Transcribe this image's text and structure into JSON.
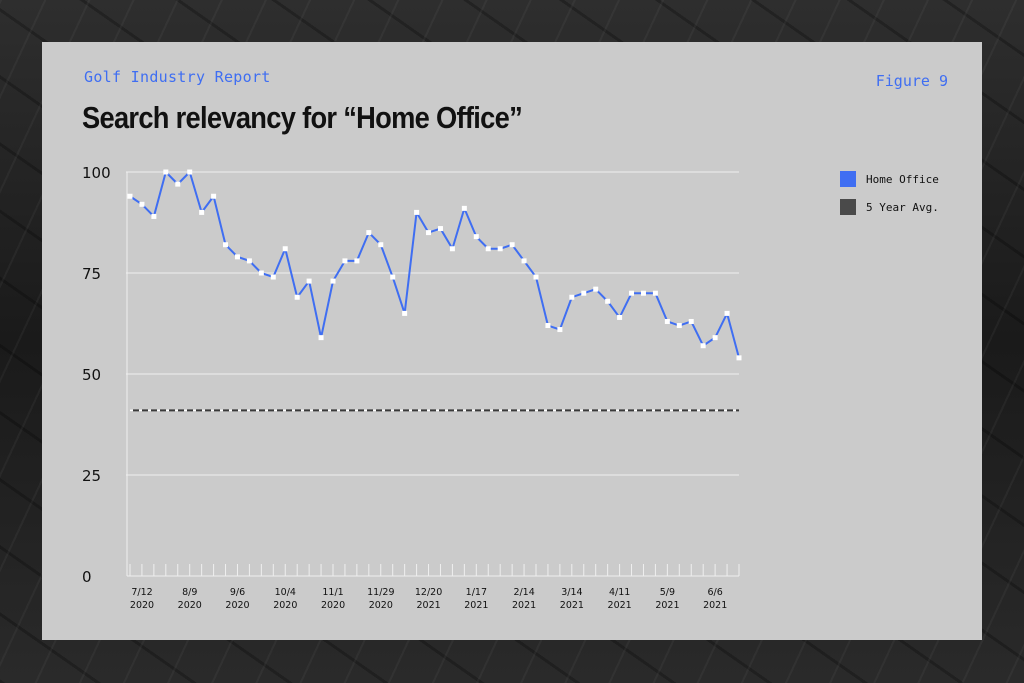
{
  "header": {
    "report": "Golf Industry Report",
    "figure": "Figure 9",
    "title": "Search relevancy for “Home Office”"
  },
  "legend": [
    {
      "label": "Home Office",
      "color": "#3f6ef2"
    },
    {
      "label": "5 Year Avg.",
      "color": "#4a4a4a"
    }
  ],
  "chart_data": {
    "type": "line",
    "title": "Search relevancy for “Home Office”",
    "xlabel": "",
    "ylabel": "",
    "ylim": [
      0,
      100
    ],
    "yticks": [
      0,
      25,
      50,
      75,
      100
    ],
    "grid": true,
    "legend_position": "top-right",
    "x_tick_labels": [
      {
        "line1": "7/12",
        "line2": "2020",
        "index": 0
      },
      {
        "line1": "8/9",
        "line2": "2020",
        "index": 4
      },
      {
        "line1": "9/6",
        "line2": "2020",
        "index": 8
      },
      {
        "line1": "10/4",
        "line2": "2020",
        "index": 12
      },
      {
        "line1": "11/1",
        "line2": "2020",
        "index": 16
      },
      {
        "line1": "11/29",
        "line2": "2020",
        "index": 20
      },
      {
        "line1": "12/20",
        "line2": "2021",
        "index": 24
      },
      {
        "line1": "1/17",
        "line2": "2021",
        "index": 28
      },
      {
        "line1": "2/14",
        "line2": "2021",
        "index": 32
      },
      {
        "line1": "3/14",
        "line2": "2021",
        "index": 36
      },
      {
        "line1": "4/11",
        "line2": "2021",
        "index": 40
      },
      {
        "line1": "5/9",
        "line2": "2021",
        "index": 44
      },
      {
        "line1": "6/6",
        "line2": "2021",
        "index": 48
      }
    ],
    "series": [
      {
        "name": "Home Office",
        "color": "#3f6ef2",
        "values": [
          94,
          92,
          89,
          100,
          97,
          100,
          90,
          94,
          82,
          79,
          78,
          75,
          74,
          81,
          69,
          73,
          59,
          73,
          78,
          78,
          85,
          82,
          74,
          65,
          90,
          85,
          86,
          81,
          91,
          84,
          81,
          81,
          82,
          78,
          74,
          62,
          61,
          69,
          70,
          71,
          68,
          64,
          70,
          70,
          70,
          63,
          62,
          63,
          57,
          59,
          65,
          54
        ]
      },
      {
        "name": "5 Year Avg.",
        "color": "#4a4a4a",
        "values": [
          41,
          41,
          41,
          41,
          41,
          41,
          41,
          41,
          41,
          41,
          41,
          41,
          41,
          41,
          41,
          41,
          41,
          41,
          41,
          41,
          41,
          41,
          41,
          41,
          41,
          41,
          41,
          41,
          41,
          41,
          41,
          41,
          41,
          41,
          41,
          41,
          41,
          41,
          41,
          41,
          41,
          41,
          41,
          41,
          41,
          41,
          41,
          41,
          41,
          41,
          41,
          41
        ]
      }
    ]
  }
}
